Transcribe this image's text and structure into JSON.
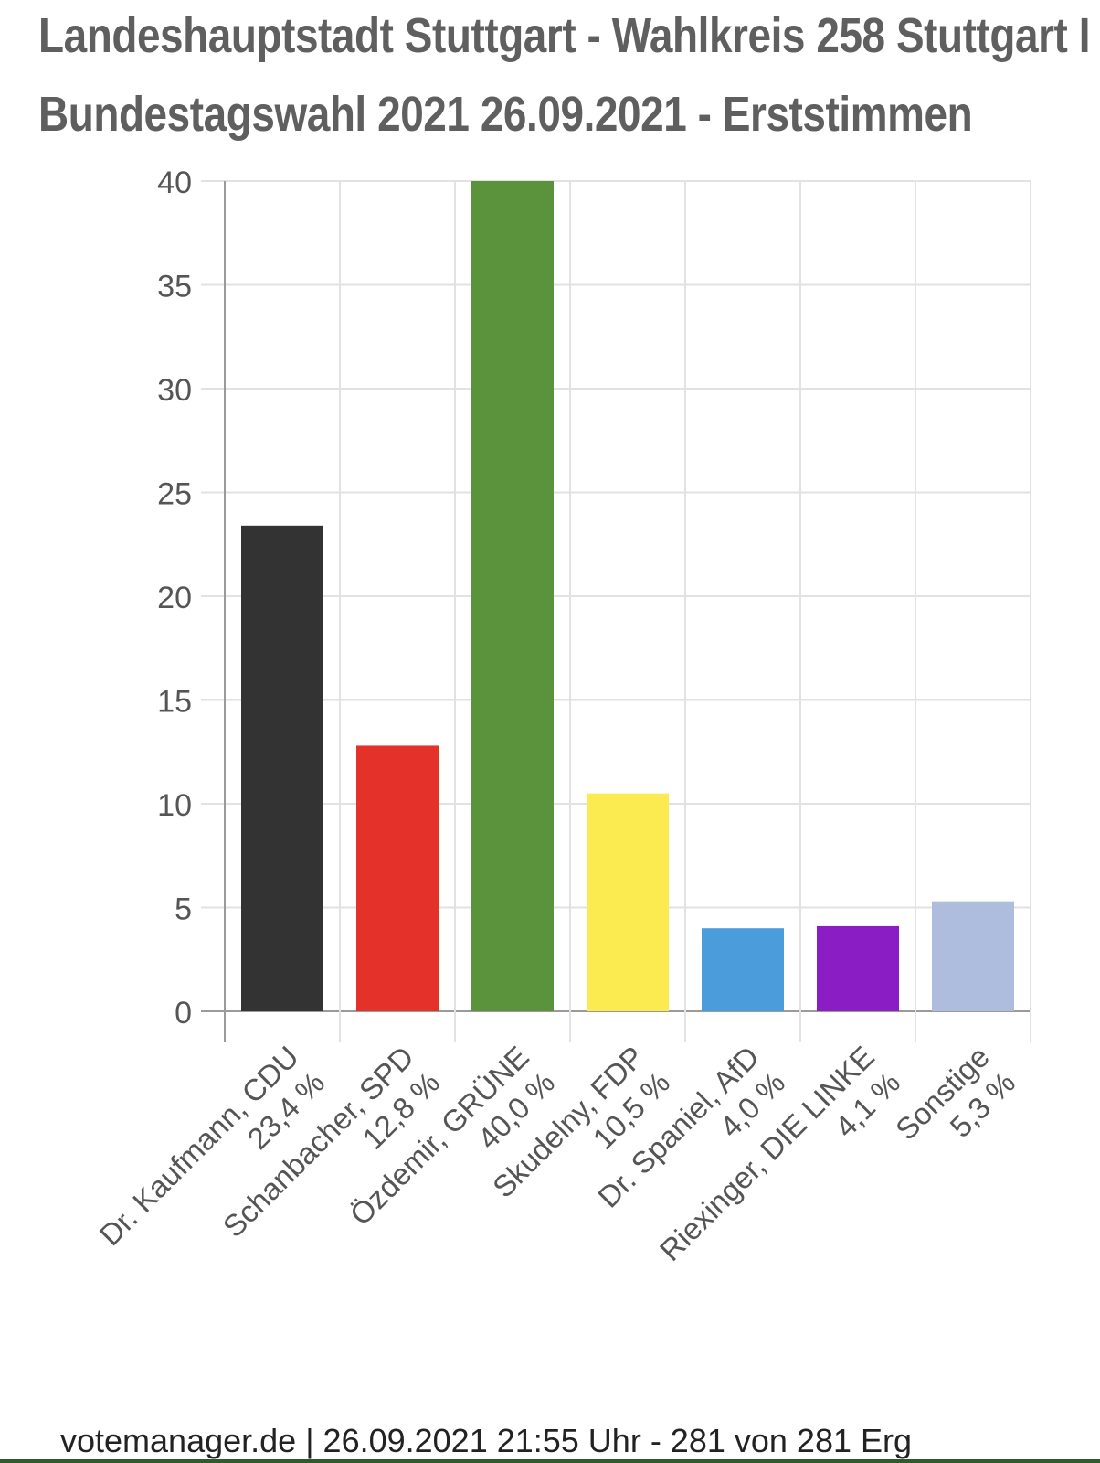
{
  "title_line_1": "Landeshauptstadt Stuttgart - Wahlkreis 258 Stuttgart I",
  "title_line_2": "Bundestagswahl 2021 26.09.2021  - Erststimmen",
  "footer": "votemanager.de | 26.09.2021 21:55 Uhr - 281 von 281 Erg",
  "chart_data": {
    "type": "bar",
    "title": "Landeshauptstadt Stuttgart - Wahlkreis 258 Stuttgart I Bundestagswahl 2021 26.09.2021  - Erststimmen",
    "xlabel": "",
    "ylabel": "",
    "ylim": [
      0,
      40
    ],
    "yticks": [
      0,
      5,
      10,
      15,
      20,
      25,
      30,
      35,
      40
    ],
    "grid": true,
    "categories": [
      "Dr. Kaufmann, CDU",
      "Schanbacher, SPD",
      "Özdemir, GRÜNE",
      "Skudelny, FDP",
      "Dr. Spaniel, AfD",
      "Riexinger, DIE LINKE",
      "Sonstige"
    ],
    "value_labels": [
      "23,4 %",
      "12,8 %",
      "40,0 %",
      "10,5 %",
      "4,0 %",
      "4,1 %",
      "5,3 %"
    ],
    "values": [
      23.4,
      12.8,
      40.0,
      10.5,
      4.0,
      4.1,
      5.3
    ],
    "colors": [
      "#333333",
      "#e4322b",
      "#5b933d",
      "#fbeb51",
      "#4a9cdb",
      "#8a1ec4",
      "#aebcdd"
    ]
  }
}
